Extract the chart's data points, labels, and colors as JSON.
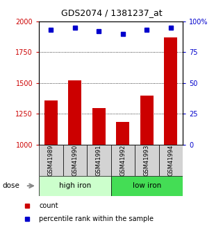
{
  "title": "GDS2074 / 1381237_at",
  "samples": [
    "GSM41989",
    "GSM41990",
    "GSM41991",
    "GSM41992",
    "GSM41993",
    "GSM41994"
  ],
  "bar_values": [
    1360,
    1520,
    1295,
    1185,
    1400,
    1870
  ],
  "percentile_values": [
    93,
    95,
    92,
    90,
    93,
    95
  ],
  "bar_color": "#cc0000",
  "dot_color": "#0000cc",
  "ylim_left": [
    1000,
    2000
  ],
  "ylim_right": [
    0,
    100
  ],
  "yticks_left": [
    1000,
    1250,
    1500,
    1750,
    2000
  ],
  "ytick_labels_left": [
    "1000",
    "1250",
    "1500",
    "1750",
    "2000"
  ],
  "yticks_right": [
    0,
    25,
    50,
    75,
    100
  ],
  "ytick_labels_right": [
    "0",
    "25",
    "50",
    "75",
    "100%"
  ],
  "groups": [
    {
      "label": "high iron",
      "indices": [
        0,
        1,
        2
      ],
      "color": "#ccffcc"
    },
    {
      "label": "low iron",
      "indices": [
        3,
        4,
        5
      ],
      "color": "#44dd55"
    }
  ],
  "dose_label": "dose",
  "legend_count_label": "count",
  "legend_percentile_label": "percentile rank within the sample",
  "grid_yticks": [
    1250,
    1500,
    1750
  ],
  "background_color": "#ffffff"
}
